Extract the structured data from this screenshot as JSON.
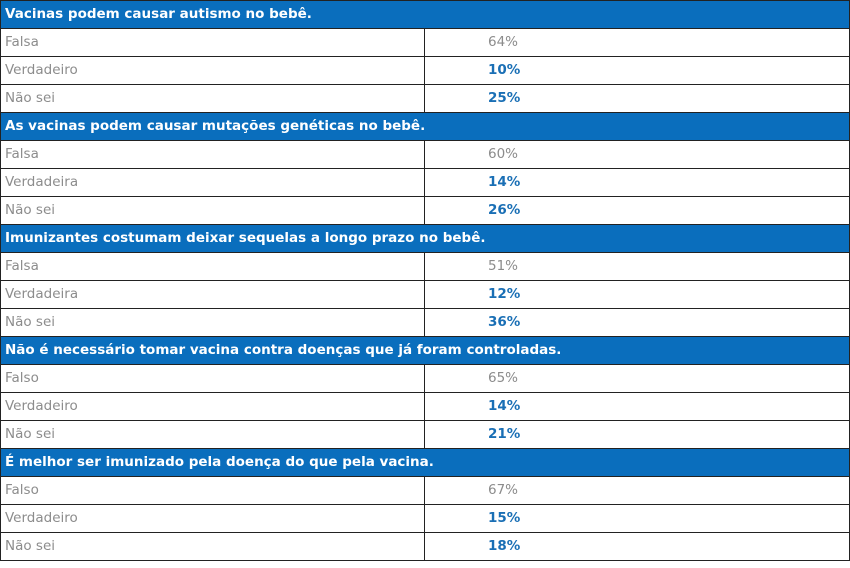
{
  "accent_color": "#0a6ebd",
  "questions": [
    {
      "question": "Vacinas podem causar autismo no bebê.",
      "answers": [
        {
          "label": "Falsa",
          "value": "64%"
        },
        {
          "label": "Verdadeiro",
          "value": "10%"
        },
        {
          "label": "Não sei",
          "value": "25%"
        }
      ]
    },
    {
      "question": "As vacinas podem causar mutações genéticas no bebê.",
      "answers": [
        {
          "label": "Falsa",
          "value": "60%"
        },
        {
          "label": "Verdadeira",
          "value": "14%"
        },
        {
          "label": "Não sei",
          "value": "26%"
        }
      ]
    },
    {
      "question": "Imunizantes costumam deixar sequelas a longo prazo no bebê.",
      "answers": [
        {
          "label": "Falsa",
          "value": "51%"
        },
        {
          "label": "Verdadeira",
          "value": "12%"
        },
        {
          "label": "Não sei",
          "value": "36%"
        }
      ]
    },
    {
      "question": "Não é necessário tomar vacina contra doenças que já foram controladas.",
      "answers": [
        {
          "label": "Falso",
          "value": "65%"
        },
        {
          "label": "Verdadeiro",
          "value": "14%"
        },
        {
          "label": "Não sei",
          "value": "21%"
        }
      ]
    },
    {
      "question": "É melhor ser imunizado pela doença do que pela vacina.",
      "answers": [
        {
          "label": "Falso",
          "value": "67%"
        },
        {
          "label": "Verdadeiro",
          "value": "15%"
        },
        {
          "label": "Não sei",
          "value": "18%"
        }
      ]
    }
  ]
}
